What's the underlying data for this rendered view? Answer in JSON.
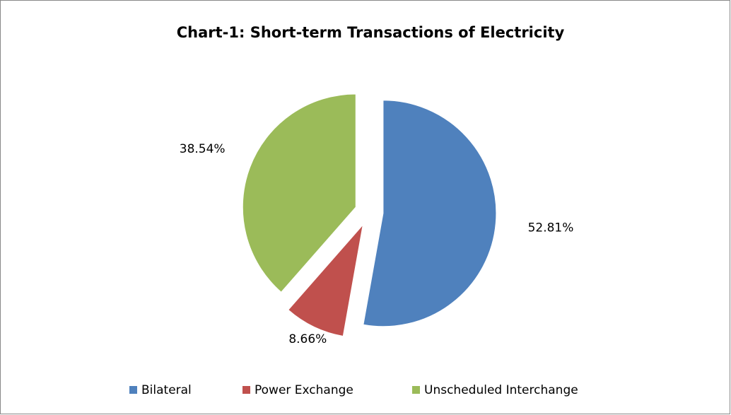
{
  "chart_data": {
    "type": "pie",
    "title": "Chart-1: Short-term Transactions of Electricity",
    "categories": [
      "Bilateral",
      "Power Exchange",
      "Unscheduled Interchange"
    ],
    "values": [
      52.81,
      8.66,
      38.54
    ],
    "value_labels": [
      "52.81%",
      "8.66%",
      "38.54%"
    ],
    "colors": [
      "#4f81bd",
      "#c0504d",
      "#9bbb59"
    ],
    "legend": "bottom"
  }
}
